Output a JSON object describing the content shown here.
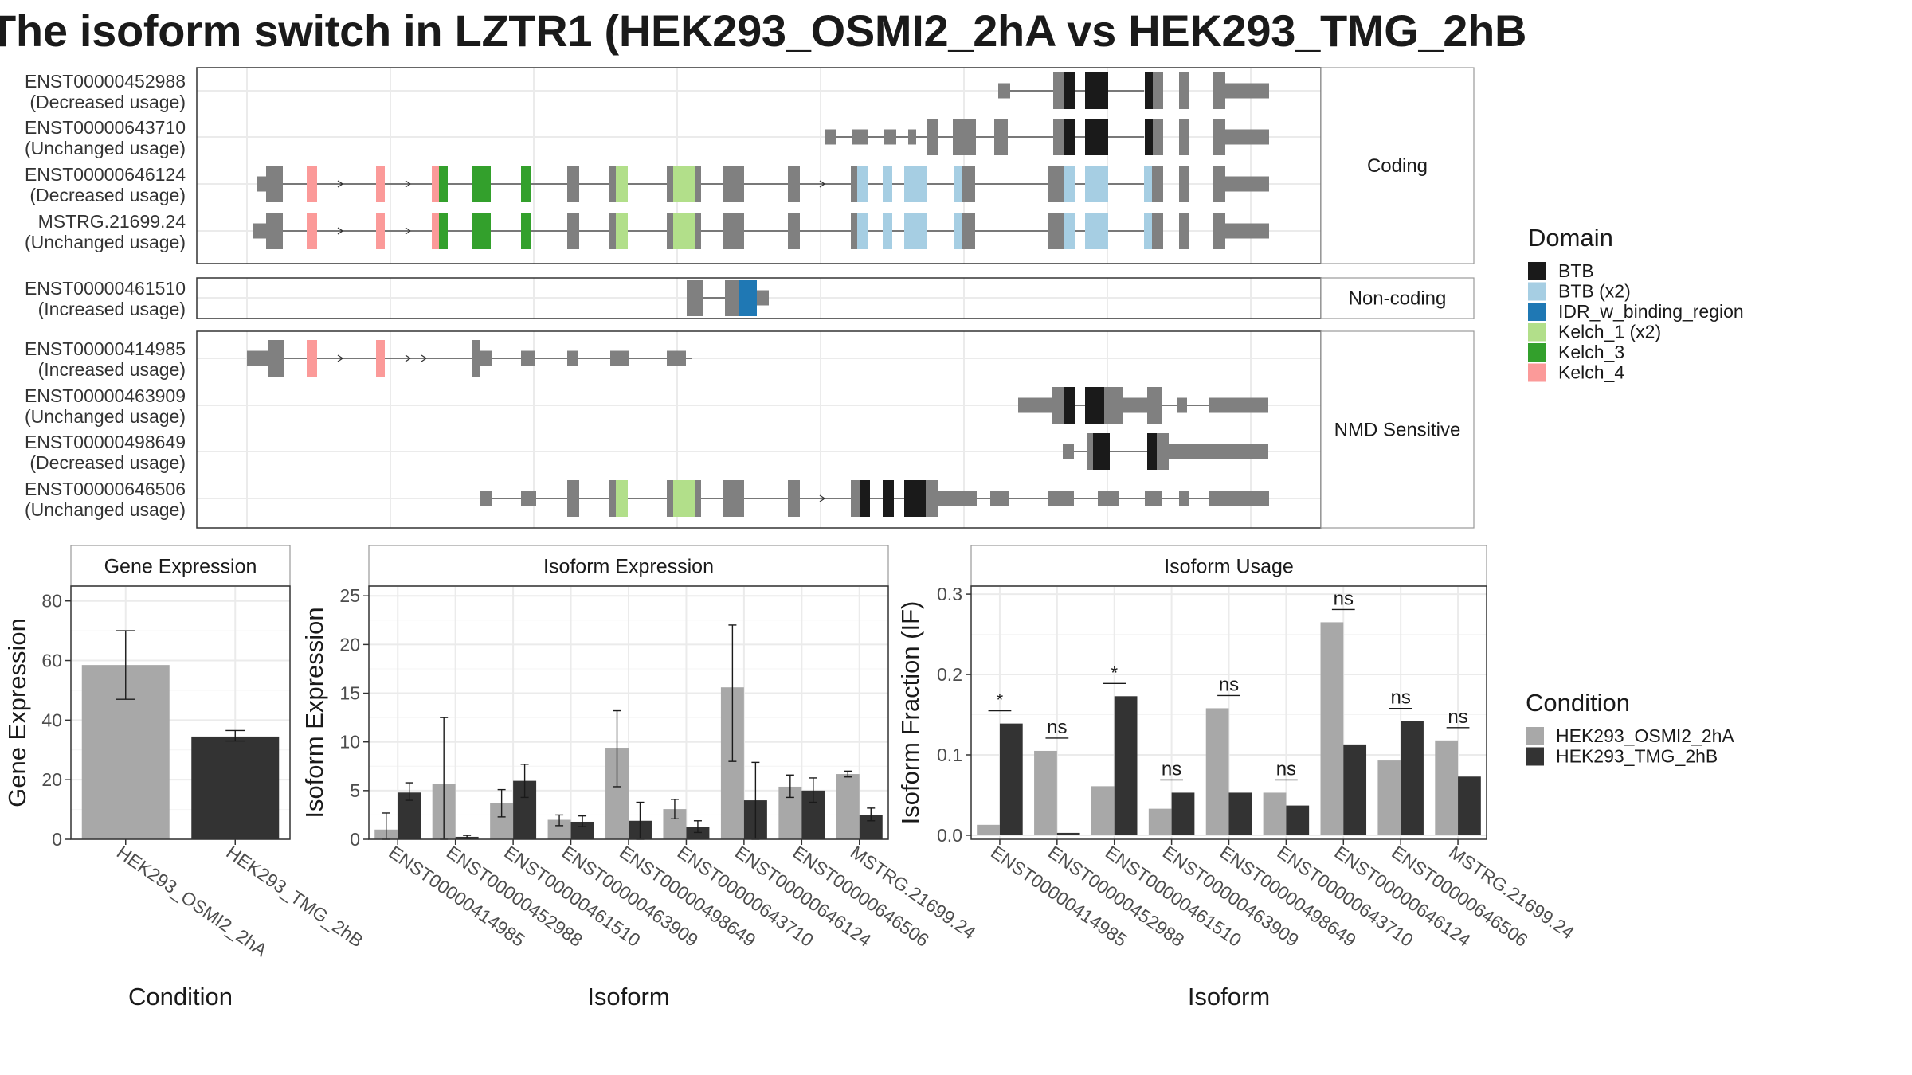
{
  "title": "The isoform switch in LZTR1 (HEK293_OSMI2_2hA vs HEK293_TMG_2hB",
  "colors": {
    "BTB": "#1a1a1a",
    "BTB (x2)": "#a6cee3",
    "IDR_w_binding_region": "#1f78b4",
    "Kelch_1 (x2)": "#b2df8a",
    "Kelch_3": "#33a02c",
    "Kelch_4": "#fb9a99",
    "exon": "#808080",
    "HEK293_OSMI2_2hA": "#a8a8a8",
    "HEK293_TMG_2hB": "#333333"
  },
  "structure": {
    "sections": [
      {
        "label": "Coding",
        "transcripts": [
          {
            "id": "ENST00000452988",
            "usage": "(Decreased usage)"
          },
          {
            "id": "ENST00000643710",
            "usage": "(Unchanged usage)"
          },
          {
            "id": "ENST00000646124",
            "usage": "(Decreased usage)"
          },
          {
            "id": "MSTRG.21699.24",
            "usage": "(Unchanged usage)"
          }
        ]
      },
      {
        "label": "Non-coding",
        "transcripts": [
          {
            "id": "ENST00000461510",
            "usage": "(Increased usage)"
          }
        ]
      },
      {
        "label": "NMD Sensitive",
        "transcripts": [
          {
            "id": "ENST00000414985",
            "usage": "(Increased usage)"
          },
          {
            "id": "ENST00000463909",
            "usage": "(Unchanged usage)"
          },
          {
            "id": "ENST00000498649",
            "usage": "(Decreased usage)"
          },
          {
            "id": "ENST00000646506",
            "usage": "(Unchanged usage)"
          }
        ]
      }
    ]
  },
  "legend_domain": {
    "title": "Domain",
    "items": [
      "BTB",
      "BTB (x2)",
      "IDR_w_binding_region",
      "Kelch_1 (x2)",
      "Kelch_3",
      "Kelch_4"
    ]
  },
  "legend_condition": {
    "title": "Condition",
    "items": [
      "HEK293_OSMI2_2hA",
      "HEK293_TMG_2hB"
    ]
  },
  "chart_data": [
    {
      "type": "bar",
      "title": "Gene Expression",
      "xlabel": "Condition",
      "ylabel": "Gene Expression",
      "ylim": [
        0,
        85
      ],
      "yticks": [
        0,
        20,
        40,
        60,
        80
      ],
      "categories": [
        "HEK293_OSMI2_2hA",
        "HEK293_TMG_2hB"
      ],
      "values": [
        58.5,
        34.5
      ],
      "errors": [
        [
          47,
          70
        ],
        [
          33,
          36.5
        ]
      ]
    },
    {
      "type": "bar",
      "title": "Isoform Expression",
      "xlabel": "Isoform",
      "ylabel": "Isoform Expression",
      "ylim": [
        0,
        26
      ],
      "yticks": [
        0,
        5,
        10,
        15,
        20,
        25
      ],
      "categories": [
        "ENST00000414985",
        "ENST00000452988",
        "ENST00000461510",
        "ENST00000463909",
        "ENST00000498649",
        "ENST00000643710",
        "ENST00000646124",
        "ENST00000646506",
        "MSTRG.21699.24"
      ],
      "series": [
        {
          "name": "HEK293_OSMI2_2hA",
          "values": [
            1.0,
            5.7,
            3.7,
            2.0,
            9.4,
            3.1,
            15.6,
            5.4,
            6.7
          ],
          "errors": [
            [
              0,
              2.7
            ],
            [
              0,
              12.5
            ],
            [
              2.3,
              5.1
            ],
            [
              1.4,
              2.5
            ],
            [
              5.4,
              13.2
            ],
            [
              2.1,
              4.1
            ],
            [
              8.0,
              22.0
            ],
            [
              4.3,
              6.6
            ],
            [
              6.4,
              7.0
            ]
          ]
        },
        {
          "name": "HEK293_TMG_2hB",
          "values": [
            4.8,
            0.25,
            6.0,
            1.8,
            1.9,
            1.3,
            4.0,
            5.0,
            2.5
          ],
          "errors": [
            [
              4.0,
              5.8
            ],
            [
              0.1,
              0.4
            ],
            [
              4.3,
              7.7
            ],
            [
              1.3,
              2.4
            ],
            [
              0,
              3.8
            ],
            [
              0.7,
              1.9
            ],
            [
              0,
              7.9
            ],
            [
              3.8,
              6.3
            ],
            [
              1.9,
              3.2
            ]
          ]
        }
      ]
    },
    {
      "type": "bar",
      "title": "Isoform Usage",
      "xlabel": "Isoform",
      "ylabel": "Isoform Fraction (IF)",
      "ylim": [
        -0.005,
        0.31
      ],
      "yticks": [
        0.0,
        0.1,
        0.2,
        0.3
      ],
      "ytick_labels": [
        "0.0",
        "0.1",
        "0.2",
        "0.3"
      ],
      "categories": [
        "ENST00000414985",
        "ENST00000452988",
        "ENST00000461510",
        "ENST00000463909",
        "ENST00000498649",
        "ENST00000643710",
        "ENST00000646124",
        "ENST00000646506",
        "MSTRG.21699.24"
      ],
      "series": [
        {
          "name": "HEK293_OSMI2_2hA",
          "values": [
            0.013,
            0.105,
            0.061,
            0.033,
            0.158,
            0.053,
            0.265,
            0.093,
            0.118
          ]
        },
        {
          "name": "HEK293_TMG_2hB",
          "values": [
            0.139,
            0.003,
            0.173,
            0.053,
            0.053,
            0.037,
            0.113,
            0.142,
            0.073
          ]
        }
      ],
      "significance": [
        "*",
        "ns",
        "*",
        "ns",
        "ns",
        "ns",
        "ns",
        "ns",
        "ns"
      ]
    }
  ]
}
